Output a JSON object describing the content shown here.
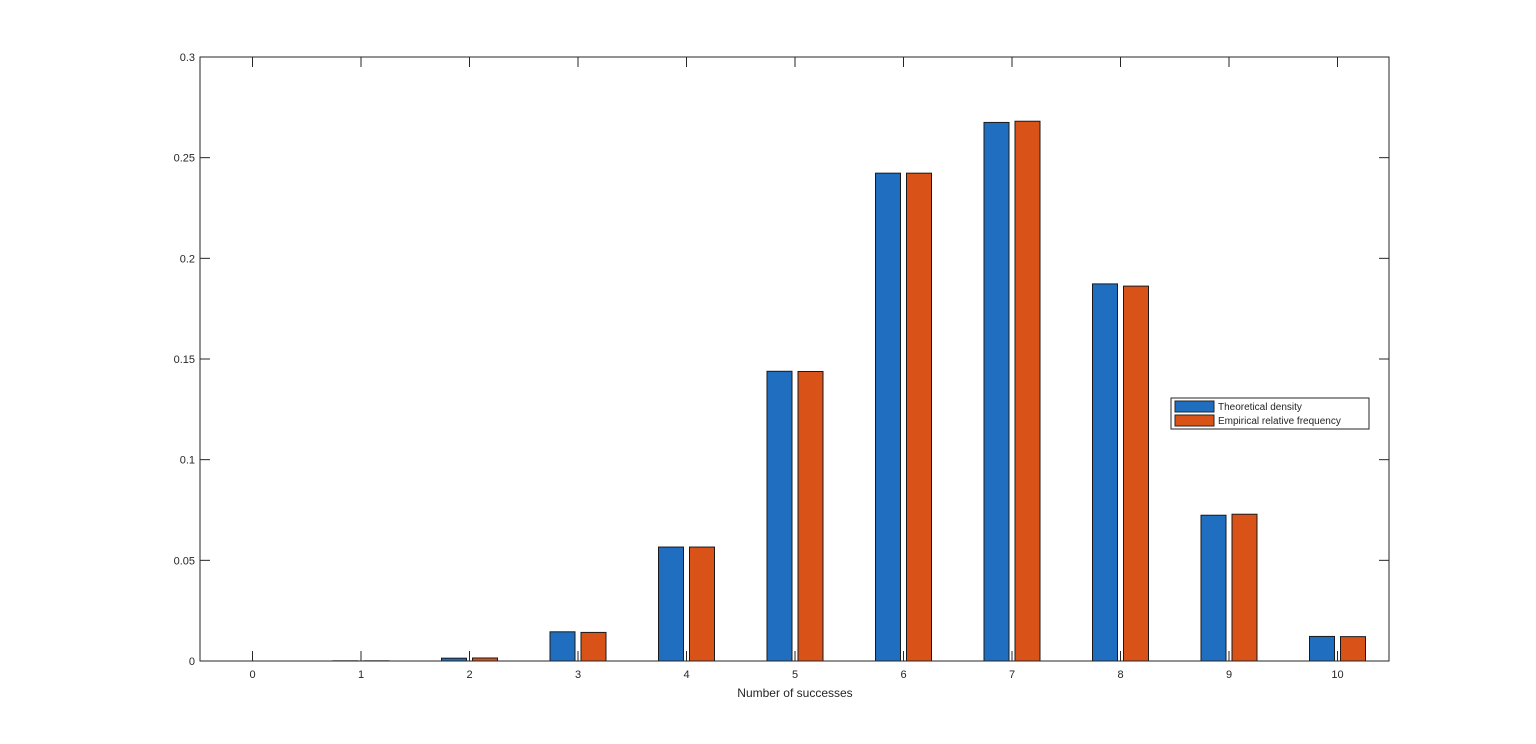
{
  "chart_data": {
    "type": "bar",
    "categories": [
      "0",
      "1",
      "2",
      "3",
      "4",
      "5",
      "6",
      "7",
      "8",
      "9",
      "10"
    ],
    "series": [
      {
        "name": "Theoretical density",
        "color": "#1f6ebf",
        "values": [
          0.0,
          0.0001,
          0.0014,
          0.0145,
          0.0566,
          0.1439,
          0.2423,
          0.2675,
          0.1873,
          0.0724,
          0.0122
        ]
      },
      {
        "name": "Empirical relative frequency",
        "color": "#d95319",
        "values": [
          0.0,
          0.0001,
          0.0015,
          0.0142,
          0.0566,
          0.1438,
          0.2423,
          0.2681,
          0.1862,
          0.0729,
          0.0121
        ]
      }
    ],
    "xlabel": "Number of successes",
    "ylabel": "",
    "ylim": [
      0,
      0.3
    ],
    "yticks": [
      "0",
      "0.05",
      "0.1",
      "0.15",
      "0.2",
      "0.25",
      "0.3"
    ],
    "ytick_values": [
      0,
      0.05,
      0.1,
      0.15,
      0.2,
      0.25,
      0.3
    ],
    "grid": false,
    "legend_position": "right"
  }
}
